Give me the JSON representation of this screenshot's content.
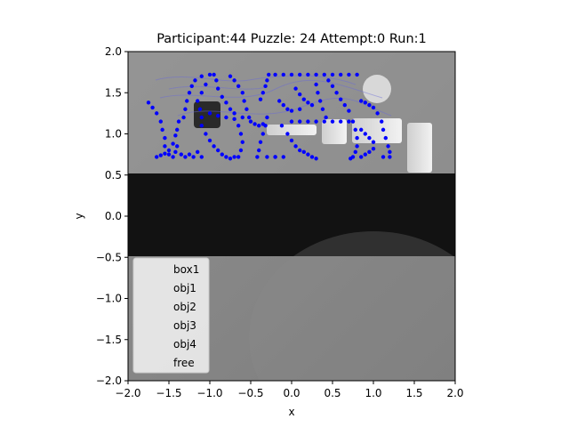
{
  "chart_data": {
    "type": "scatter",
    "title": "Participant:44 Puzzle: 24 Attempt:0 Run:1",
    "xlabel": "x",
    "ylabel": "y",
    "xlim": [
      -2.0,
      2.0
    ],
    "ylim": [
      -2.0,
      2.0
    ],
    "xticks": [
      "−2.0",
      "−1.5",
      "−1.0",
      "−0.5",
      "0.0",
      "0.5",
      "1.0",
      "1.5",
      "2.0"
    ],
    "yticks": [
      "−2.0",
      "−1.5",
      "−1.0",
      "−0.5",
      "0.0",
      "0.5",
      "1.0",
      "1.5",
      "2.0"
    ],
    "grid": false,
    "legend": {
      "placement": "lower-left",
      "entries": [
        "box1",
        "obj1",
        "obj2",
        "obj3",
        "obj4",
        "free"
      ]
    },
    "background": {
      "description": "grayscale scene photo",
      "dark_band_y": [
        -0.5,
        0.5
      ]
    },
    "marker_color": "#0000ff",
    "series": [
      {
        "points": [
          [
            -1.75,
            1.38
          ],
          [
            -1.7,
            1.32
          ],
          [
            -1.65,
            1.25
          ],
          [
            -1.6,
            1.15
          ],
          [
            -1.58,
            1.05
          ],
          [
            -1.55,
            0.95
          ],
          [
            -1.55,
            0.85
          ],
          [
            -1.5,
            0.75
          ],
          [
            -1.45,
            0.72
          ],
          [
            -1.65,
            0.72
          ],
          [
            -1.6,
            0.74
          ],
          [
            -1.55,
            0.76
          ],
          [
            -1.5,
            0.8
          ],
          [
            -1.45,
            0.88
          ],
          [
            -1.42,
            0.98
          ],
          [
            -1.4,
            1.05
          ],
          [
            -1.38,
            1.15
          ],
          [
            -1.4,
            0.85
          ],
          [
            -1.42,
            0.78
          ],
          [
            -1.35,
            0.75
          ],
          [
            -1.3,
            0.72
          ],
          [
            -1.25,
            0.75
          ],
          [
            -1.2,
            0.72
          ],
          [
            -1.15,
            0.78
          ],
          [
            -1.1,
            0.72
          ],
          [
            -1.32,
            1.2
          ],
          [
            -1.3,
            1.3
          ],
          [
            -1.28,
            1.4
          ],
          [
            -1.25,
            1.5
          ],
          [
            -1.22,
            1.58
          ],
          [
            -1.18,
            1.65
          ],
          [
            -1.1,
            1.7
          ],
          [
            -1.0,
            1.72
          ],
          [
            -0.95,
            1.72
          ],
          [
            -0.92,
            1.65
          ],
          [
            -0.9,
            1.55
          ],
          [
            -0.85,
            1.45
          ],
          [
            -0.8,
            1.38
          ],
          [
            -0.75,
            1.3
          ],
          [
            -0.7,
            1.25
          ],
          [
            -0.6,
            1.2
          ],
          [
            -1.05,
            1.6
          ],
          [
            -1.1,
            1.5
          ],
          [
            -1.15,
            1.4
          ],
          [
            -1.12,
            1.3
          ],
          [
            -1.1,
            1.2
          ],
          [
            -1.1,
            1.1
          ],
          [
            -1.05,
            1.0
          ],
          [
            -1.0,
            0.92
          ],
          [
            -0.95,
            0.85
          ],
          [
            -0.9,
            0.8
          ],
          [
            -0.85,
            0.75
          ],
          [
            -0.8,
            0.72
          ],
          [
            -0.75,
            0.7
          ],
          [
            -0.7,
            0.72
          ],
          [
            -0.75,
            1.7
          ],
          [
            -0.7,
            1.65
          ],
          [
            -0.65,
            1.58
          ],
          [
            -0.6,
            1.5
          ],
          [
            -0.58,
            1.4
          ],
          [
            -0.55,
            1.3
          ],
          [
            -0.52,
            1.2
          ],
          [
            -0.5,
            1.15
          ],
          [
            -0.45,
            1.12
          ],
          [
            -0.4,
            1.1
          ],
          [
            -0.35,
            1.12
          ],
          [
            -0.3,
            1.2
          ],
          [
            -0.32,
            1.1
          ],
          [
            -0.35,
            1.0
          ],
          [
            -0.38,
            0.9
          ],
          [
            -0.4,
            0.8
          ],
          [
            -0.42,
            0.72
          ],
          [
            -0.3,
            0.72
          ],
          [
            -0.2,
            0.72
          ],
          [
            -0.1,
            0.72
          ],
          [
            -0.38,
            1.42
          ],
          [
            -0.35,
            1.5
          ],
          [
            -0.32,
            1.58
          ],
          [
            -0.3,
            1.65
          ],
          [
            -0.28,
            1.72
          ],
          [
            -0.2,
            1.72
          ],
          [
            -0.1,
            1.72
          ],
          [
            0.0,
            1.72
          ],
          [
            0.1,
            1.72
          ],
          [
            0.2,
            1.72
          ],
          [
            0.3,
            1.72
          ],
          [
            0.4,
            1.72
          ],
          [
            0.5,
            1.72
          ],
          [
            0.6,
            1.72
          ],
          [
            0.7,
            1.72
          ],
          [
            0.8,
            1.72
          ],
          [
            -0.15,
            1.4
          ],
          [
            -0.1,
            1.35
          ],
          [
            -0.05,
            1.3
          ],
          [
            0.0,
            1.28
          ],
          [
            0.1,
            1.3
          ],
          [
            -0.12,
            1.1
          ],
          [
            -0.05,
            1.0
          ],
          [
            0.0,
            0.92
          ],
          [
            0.05,
            0.85
          ],
          [
            0.1,
            0.8
          ],
          [
            0.15,
            0.78
          ],
          [
            0.2,
            0.75
          ],
          [
            0.25,
            0.72
          ],
          [
            0.3,
            0.7
          ],
          [
            0.05,
            1.55
          ],
          [
            0.1,
            1.48
          ],
          [
            0.15,
            1.42
          ],
          [
            0.2,
            1.38
          ],
          [
            0.25,
            1.35
          ],
          [
            0.3,
            1.6
          ],
          [
            0.32,
            1.5
          ],
          [
            0.35,
            1.4
          ],
          [
            0.38,
            1.3
          ],
          [
            0.42,
            1.2
          ],
          [
            0.45,
            1.65
          ],
          [
            0.5,
            1.58
          ],
          [
            0.55,
            1.5
          ],
          [
            0.6,
            1.42
          ],
          [
            0.65,
            1.35
          ],
          [
            0.7,
            1.28
          ],
          [
            0.75,
            1.15
          ],
          [
            0.78,
            1.05
          ],
          [
            0.8,
            0.95
          ],
          [
            0.8,
            0.85
          ],
          [
            0.78,
            0.78
          ],
          [
            0.75,
            0.72
          ],
          [
            0.72,
            0.7
          ],
          [
            0.85,
            1.05
          ],
          [
            0.9,
            1.0
          ],
          [
            0.95,
            0.95
          ],
          [
            1.0,
            0.9
          ],
          [
            1.0,
            0.82
          ],
          [
            0.95,
            0.78
          ],
          [
            0.9,
            0.75
          ],
          [
            0.85,
            0.72
          ],
          [
            0.85,
            1.4
          ],
          [
            0.9,
            1.38
          ],
          [
            0.95,
            1.35
          ],
          [
            1.0,
            1.32
          ],
          [
            1.05,
            1.25
          ],
          [
            1.1,
            1.15
          ],
          [
            1.12,
            1.05
          ],
          [
            1.15,
            0.95
          ],
          [
            1.18,
            0.85
          ],
          [
            1.2,
            0.78
          ],
          [
            1.2,
            0.72
          ],
          [
            1.12,
            0.72
          ],
          [
            -1.0,
            1.25
          ],
          [
            -0.9,
            1.22
          ],
          [
            -0.8,
            1.2
          ],
          [
            -0.7,
            1.18
          ],
          [
            -0.65,
            1.1
          ],
          [
            -0.62,
            1.0
          ],
          [
            -0.6,
            0.9
          ],
          [
            -0.62,
            0.8
          ],
          [
            -0.65,
            0.72
          ],
          [
            -0.2,
            0.72
          ],
          [
            0.0,
            1.15
          ],
          [
            0.1,
            1.15
          ],
          [
            0.2,
            1.15
          ],
          [
            0.3,
            1.15
          ],
          [
            0.4,
            1.15
          ],
          [
            0.5,
            1.15
          ],
          [
            0.6,
            1.15
          ],
          [
            0.7,
            1.15
          ]
        ]
      }
    ]
  }
}
